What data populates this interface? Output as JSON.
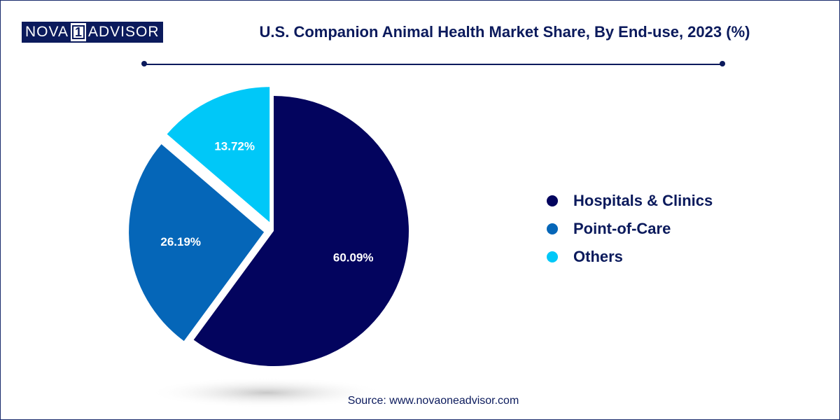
{
  "brand": {
    "logo_left": "NOVA",
    "logo_num": "1",
    "logo_right": "ADVISOR"
  },
  "chart_data": {
    "type": "pie",
    "title": "U.S. Companion Animal Health Market Share, By End-use, 2023 (%)",
    "slices": [
      {
        "label": "Hospitals & Clinics",
        "value": 60.09,
        "value_label": "60.09%",
        "color": "#03045e",
        "exploded": false
      },
      {
        "label": "Point-of-Care",
        "value": 26.19,
        "value_label": "26.19%",
        "color": "#0566b8",
        "exploded": true
      },
      {
        "label": "Others",
        "value": 13.72,
        "value_label": "13.72%",
        "color": "#00c8f8",
        "exploded": true
      }
    ],
    "legend_position": "right"
  },
  "source": "Source: www.novaoneadvisor.com"
}
